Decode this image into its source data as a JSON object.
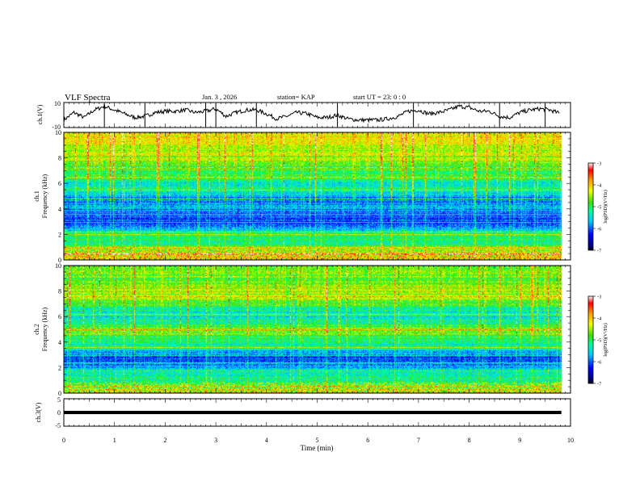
{
  "header": {
    "title": "VLF Spectra",
    "date": "Jan. 3 , 2026",
    "station": "station= KAP",
    "start": "start UT = 23: 0 : 0"
  },
  "chart_data": [
    {
      "id": "ch1-waveform",
      "type": "line",
      "ylabel": "ch.1(V)",
      "ylim": [
        -10,
        10
      ],
      "ytick_labels": [
        "10",
        "-10"
      ],
      "xlim": [
        0,
        10
      ],
      "description_values": {
        "x": [
          0,
          0.2,
          0.4,
          0.6,
          0.8,
          1.0,
          1.2,
          1.4,
          1.6,
          1.8,
          2.0,
          2.2,
          2.4,
          2.6,
          2.8,
          3.0,
          3.2,
          3.4,
          3.6,
          3.8,
          4.0,
          4.2,
          4.4,
          4.6,
          4.8,
          5.0,
          5.2,
          5.4,
          5.6,
          5.8,
          6.0,
          6.2,
          6.4,
          6.6,
          6.8,
          7.0,
          7.2,
          7.4,
          7.6,
          7.8,
          8.0,
          8.2,
          8.4,
          8.6,
          8.8,
          9.0,
          9.2,
          9.4,
          9.6,
          9.8
        ],
        "y": [
          -4,
          2,
          -2,
          4,
          7,
          4,
          1,
          -2,
          -1,
          2,
          3,
          3,
          4,
          2,
          3,
          5,
          -1,
          2,
          4,
          4,
          1,
          -3,
          -1,
          2,
          1,
          -2,
          -2,
          0,
          -3,
          -4,
          -4,
          -4,
          -3,
          -1,
          3,
          4,
          1,
          2,
          4,
          7,
          6,
          3,
          3,
          -1,
          -2,
          2,
          4,
          5,
          4,
          1
        ]
      },
      "spikes_x": [
        0.8,
        1.6,
        2.8,
        3.0,
        3.8,
        5.4,
        6.9,
        8.6,
        9.5
      ]
    },
    {
      "id": "ch1-spectrogram",
      "type": "heatmap",
      "ylabel_lines": [
        "ch.1",
        "Frequency (kHz)"
      ],
      "xlim": [
        0,
        10
      ],
      "data_xmax": 9.82,
      "ylim": [
        0,
        10
      ],
      "yticks": [
        0,
        2,
        4,
        6,
        8,
        10
      ],
      "colorbar": {
        "label": "log(PSD)(V²/Hz)",
        "range": [
          -7,
          -3
        ],
        "ticks": [
          "-3",
          "-4",
          "-5",
          "-6",
          "-7"
        ]
      },
      "frequency_profile": {
        "freq_khz": [
          0,
          0.3,
          0.6,
          0.9,
          1.2,
          1.5,
          2.0,
          2.5,
          3.0,
          3.5,
          4.0,
          4.5,
          5.0,
          5.5,
          6.0,
          6.5,
          7.0,
          7.5,
          8.0,
          8.5,
          9.0,
          9.5,
          10.0
        ],
        "log_psd": [
          -4.6,
          -4.3,
          -4.5,
          -4.8,
          -5.0,
          -5.1,
          -5.1,
          -5.8,
          -6.1,
          -6.0,
          -5.8,
          -5.9,
          -5.9,
          -5.1,
          -5.6,
          -4.8,
          -4.9,
          -4.8,
          -4.6,
          -4.5,
          -4.4,
          -4.2,
          -4.2
        ]
      },
      "band_lines_khz": [
        0.5,
        1.0,
        2.0,
        2.2,
        3.0,
        3.6,
        4.8,
        5.5,
        6.5,
        7.3
      ]
    },
    {
      "id": "ch2-spectrogram",
      "type": "heatmap",
      "ylabel_lines": [
        "ch.2",
        "Frequency (kHz)"
      ],
      "xlim": [
        0,
        10
      ],
      "data_xmax": 9.82,
      "ylim": [
        0,
        10
      ],
      "yticks": [
        0,
        2,
        4,
        6,
        8,
        10
      ],
      "colorbar": {
        "label": "log(PSD)(V²/Hz)",
        "range": [
          -7,
          -3
        ],
        "ticks": [
          "-3",
          "-4",
          "-5",
          "-6",
          "-7"
        ]
      },
      "frequency_profile": {
        "freq_khz": [
          0,
          0.3,
          0.6,
          0.9,
          1.2,
          1.5,
          2.0,
          2.5,
          3.0,
          3.5,
          4.0,
          4.5,
          5.0,
          5.5,
          6.0,
          6.5,
          7.0,
          7.5,
          8.0,
          8.5,
          9.0,
          9.5,
          10.0
        ],
        "log_psd": [
          -4.5,
          -4.6,
          -5.0,
          -5.1,
          -5.2,
          -5.3,
          -5.6,
          -6.0,
          -6.1,
          -5.3,
          -5.2,
          -5.0,
          -4.6,
          -5.1,
          -5.4,
          -5.3,
          -5.0,
          -4.5,
          -4.6,
          -4.7,
          -4.8,
          -4.6,
          -4.6
        ]
      },
      "band_lines_khz": [
        0.6,
        1.8,
        2.4,
        3.0,
        3.6,
        4.7,
        5.0,
        6.2,
        7.6
      ]
    },
    {
      "id": "ch3-waveform",
      "type": "line",
      "ylabel": "ch.3(V)",
      "ylim": [
        -5,
        5
      ],
      "ytick_labels": [
        "5",
        "0",
        "-5"
      ],
      "xlim": [
        0,
        10
      ],
      "data_xmax": 9.82,
      "level_band": [
        -0.6,
        0.6
      ],
      "xlabel": "Time (min)",
      "xtick_labels": [
        "0",
        "1",
        "2",
        "3",
        "4",
        "5",
        "6",
        "7",
        "8",
        "9",
        "10"
      ]
    }
  ]
}
